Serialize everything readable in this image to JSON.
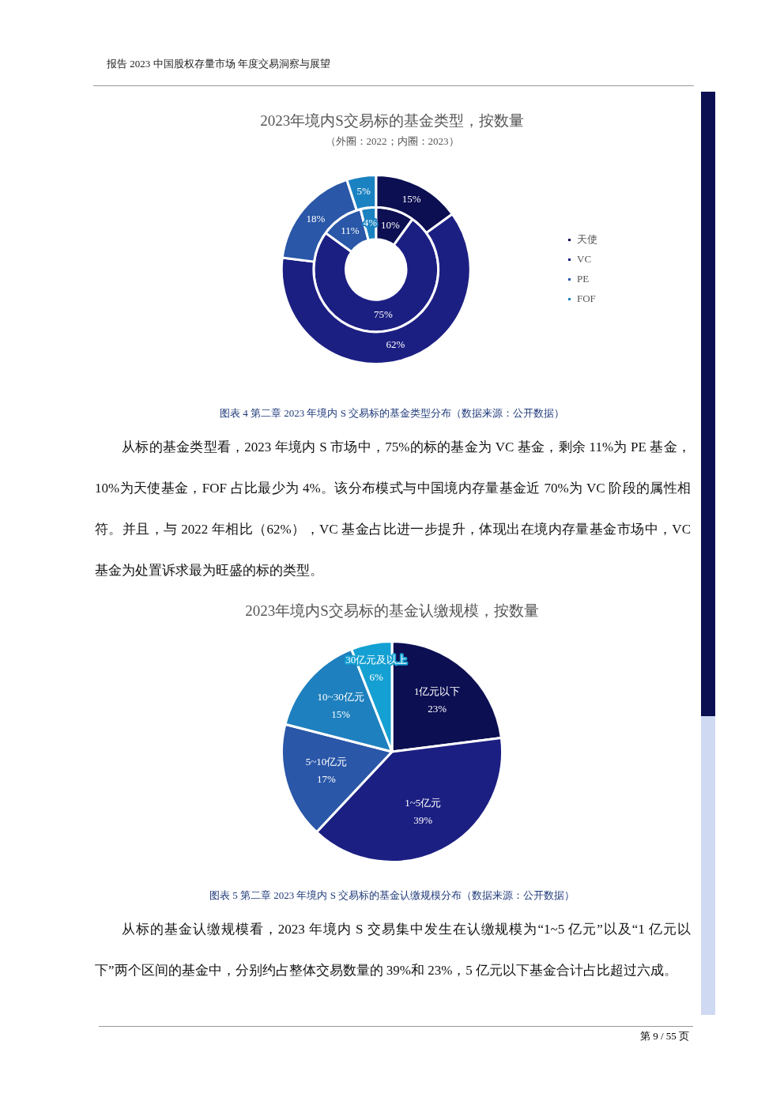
{
  "chart_data": [
    {
      "type": "donut",
      "title": "2023年境内S交易标的基金类型，按数量",
      "subtitle": "（外圈：2022；内圈：2023）",
      "categories": [
        "天使",
        "VC",
        "PE",
        "FOF"
      ],
      "colors": [
        "#0c0f52",
        "#1c1f82",
        "#2a57a8",
        "#1b82c2"
      ],
      "series": [
        {
          "values": [
            15,
            62,
            18,
            5
          ],
          "value_labels": [
            "15%",
            "62%",
            "18%",
            "5%"
          ]
        },
        {
          "values": [
            10,
            75,
            11,
            4
          ],
          "value_labels": [
            "10%",
            "75%",
            "11%",
            "4%"
          ]
        }
      ],
      "legend": "right",
      "annotations": [
        "报告 2023 中国股权存量市场 年度交易洞察与展望",
        "图表 4 第二章 2023 年境内 S 交易标的基金类型分布（数据来源：公开数据）",
        "从标的基金类型看，2023 年境内 S 市场中，75%的标的基金为 VC 基金，剩余 11%为 PE 基金，10%为天使基金，FOF 占比最少为 4%。该分布模式与中国境内存量基金近 70%为 VC 阶段的属性相符。并且，与 2022 年相比（62%），VC 基金占比进一步提升，体现出在境内存量基金市场中，VC 基金为处置诉求最为旺盛的标的类型。"
      ]
    },
    {
      "type": "pie",
      "title": "2023年境内S交易标的基金认缴规模，按数量",
      "categories": [
        "1亿元以下",
        "1~5亿元",
        "5~10亿元",
        "10~30亿元",
        "30亿元及以上"
      ],
      "values": [
        23,
        39,
        17,
        15,
        6
      ],
      "value_labels": [
        "23%",
        "39%",
        "17%",
        "15%",
        "6%"
      ],
      "colors": [
        "#0c0f52",
        "#1c1f82",
        "#2a57a8",
        "#1e80be",
        "#14a0d2"
      ],
      "annotations": [
        "图表 5 第二章 2023 年境内 S 交易标的基金认缴规模分布（数据来源：公开数据）",
        "从标的基金认缴规模看，2023 年境内 S 交易集中发生在认缴规模为“1~5 亿元”以及“1 亿元以下”两个区间的基金中，分别约占整体交易数量的 39%和 23%，5 亿元以下基金合计占比超过六成。",
        "第 9 / 55 页"
      ]
    }
  ]
}
